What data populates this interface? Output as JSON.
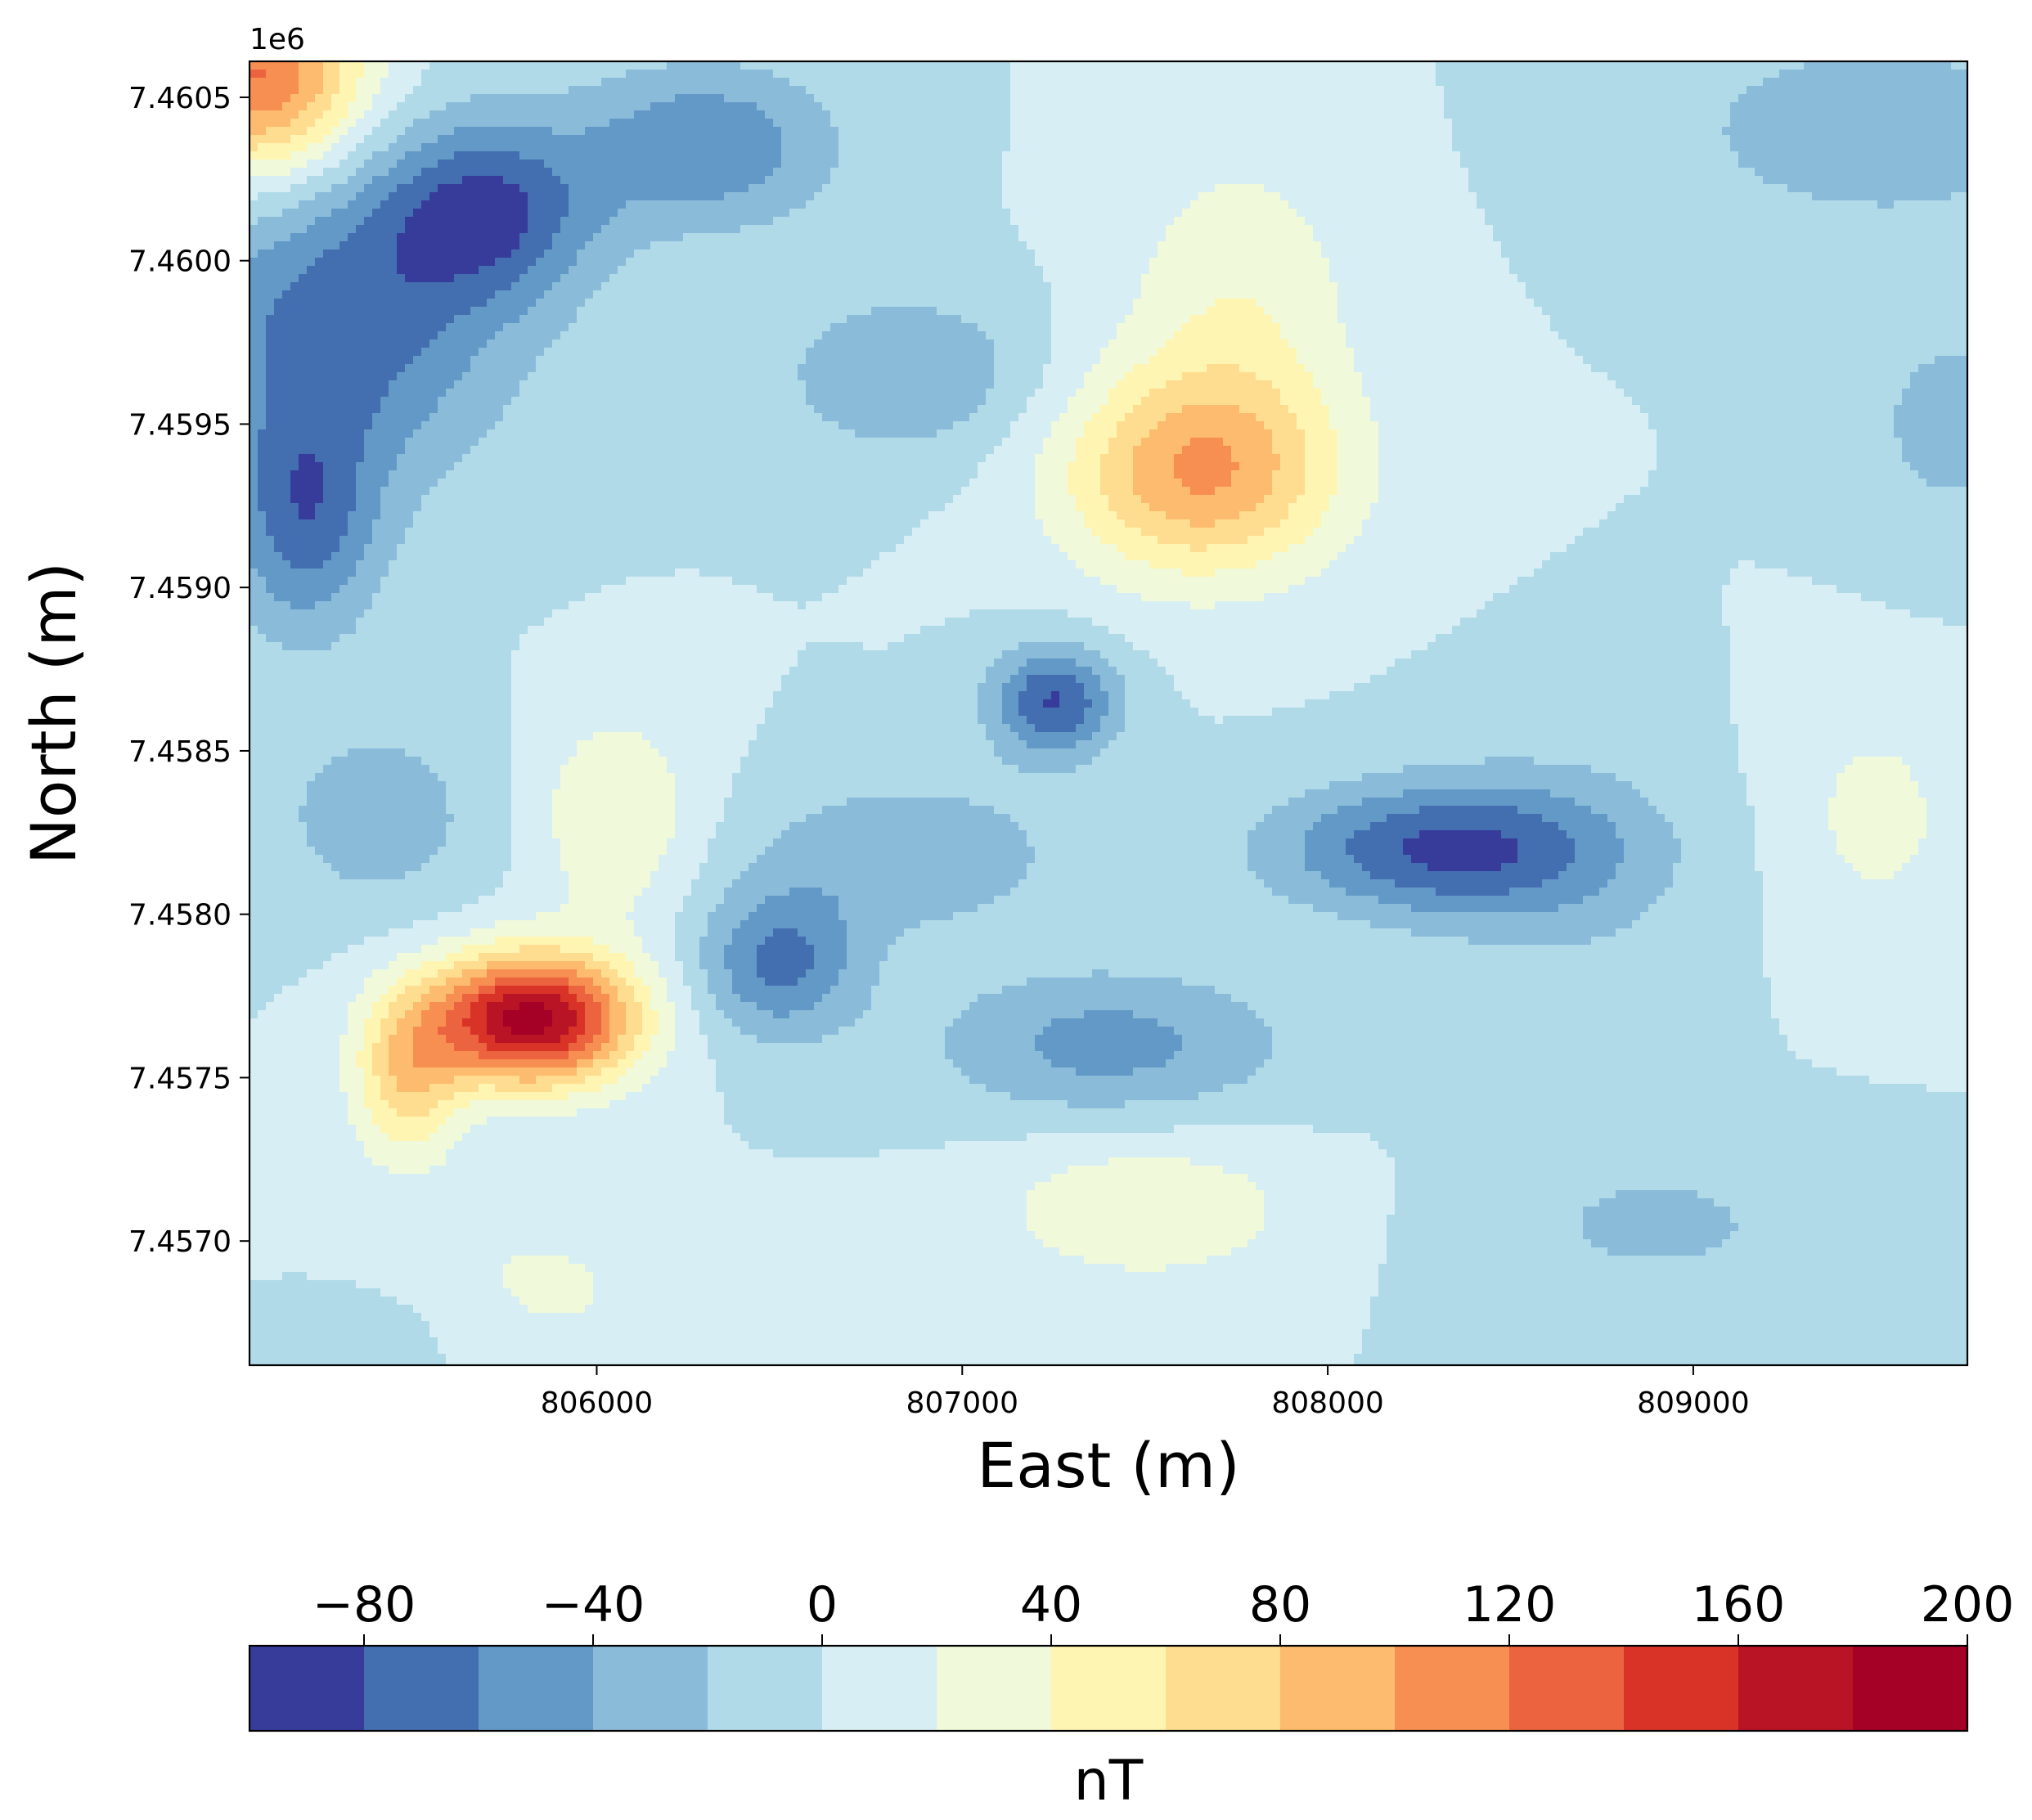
{
  "chart_data": {
    "type": "heatmap",
    "subtype": "filled-contour",
    "title": "",
    "xlabel": "East (m)",
    "ylabel": "North (m)",
    "xlim": [
      805050,
      809750
    ],
    "ylim": [
      7456620,
      7460610
    ],
    "x_ticks": [
      806000,
      807000,
      808000,
      809000
    ],
    "x_tick_labels": [
      "806000",
      "807000",
      "808000",
      "809000"
    ],
    "y_ticks": [
      7457000,
      7457500,
      7458000,
      7458500,
      7459000,
      7459500,
      7460000,
      7460500
    ],
    "y_tick_labels": [
      "7.4570",
      "7.4575",
      "7.4580",
      "7.4585",
      "7.4590",
      "7.4595",
      "7.4600",
      "7.4605"
    ],
    "y_offset_label": "1e6",
    "background_level": 0,
    "anomalies": [
      {
        "x": 805820,
        "y": 7457680,
        "peak": 190,
        "rx": 280,
        "ry": 200
      },
      {
        "x": 805480,
        "y": 7457500,
        "peak": 70,
        "rx": 150,
        "ry": 260
      },
      {
        "x": 806050,
        "y": 7458300,
        "peak": 40,
        "rx": 220,
        "ry": 320
      },
      {
        "x": 807650,
        "y": 7459350,
        "peak": 98,
        "rx": 380,
        "ry": 320
      },
      {
        "x": 807760,
        "y": 7459900,
        "peak": 35,
        "rx": 320,
        "ry": 450
      },
      {
        "x": 805080,
        "y": 7460560,
        "peak": 125,
        "rx": 280,
        "ry": 300
      },
      {
        "x": 807500,
        "y": 7457100,
        "peak": 38,
        "rx": 420,
        "ry": 230
      },
      {
        "x": 805800,
        "y": 7456850,
        "peak": 26,
        "rx": 420,
        "ry": 260
      },
      {
        "x": 809500,
        "y": 7458300,
        "peak": 26,
        "rx": 260,
        "ry": 380
      },
      {
        "x": 808300,
        "y": 7458200,
        "peak": -78,
        "rx": 450,
        "ry": 200
      },
      {
        "x": 808650,
        "y": 7458150,
        "peak": -22,
        "rx": 380,
        "ry": 400
      },
      {
        "x": 806500,
        "y": 7457850,
        "peak": -65,
        "rx": 220,
        "ry": 220
      },
      {
        "x": 806850,
        "y": 7458180,
        "peak": -38,
        "rx": 420,
        "ry": 230
      },
      {
        "x": 807250,
        "y": 7458650,
        "peak": -82,
        "rx": 170,
        "ry": 170
      },
      {
        "x": 807400,
        "y": 7457600,
        "peak": -48,
        "rx": 480,
        "ry": 230
      },
      {
        "x": 805300,
        "y": 7459800,
        "peak": -70,
        "rx": 450,
        "ry": 480
      },
      {
        "x": 805700,
        "y": 7460150,
        "peak": -75,
        "rx": 300,
        "ry": 280
      },
      {
        "x": 806300,
        "y": 7460350,
        "peak": -58,
        "rx": 350,
        "ry": 250
      },
      {
        "x": 805200,
        "y": 7459200,
        "peak": -65,
        "rx": 200,
        "ry": 350
      },
      {
        "x": 806850,
        "y": 7459650,
        "peak": -40,
        "rx": 350,
        "ry": 250
      },
      {
        "x": 809500,
        "y": 7460400,
        "peak": -35,
        "rx": 550,
        "ry": 300
      },
      {
        "x": 809700,
        "y": 7459500,
        "peak": -28,
        "rx": 250,
        "ry": 350
      },
      {
        "x": 805400,
        "y": 7458300,
        "peak": -32,
        "rx": 300,
        "ry": 300
      },
      {
        "x": 808900,
        "y": 7457050,
        "peak": -24,
        "rx": 500,
        "ry": 250
      },
      {
        "x": 805500,
        "y": 7456750,
        "peak": -15,
        "rx": 300,
        "ry": 200
      }
    ],
    "grid": false,
    "colorbar": {
      "label": "nT",
      "location": "bottom",
      "levels": [
        -100,
        -80,
        -60,
        -40,
        -20,
        0,
        20,
        40,
        60,
        80,
        100,
        120,
        140,
        160,
        180,
        200
      ],
      "ticks": [
        -80,
        -40,
        0,
        40,
        80,
        120,
        160,
        200
      ],
      "tick_labels": [
        "−80",
        "−40",
        "0",
        "40",
        "80",
        "120",
        "160",
        "200"
      ],
      "colors": [
        "#373c9a",
        "#436eb0",
        "#6399c7",
        "#8abcda",
        "#b1dae9",
        "#d7eef5",
        "#f0f9d9",
        "#fff5b3",
        "#fedd90",
        "#fcbb6f",
        "#f88f52",
        "#ec633f",
        "#d93328",
        "#b91326",
        "#a50026"
      ]
    }
  }
}
